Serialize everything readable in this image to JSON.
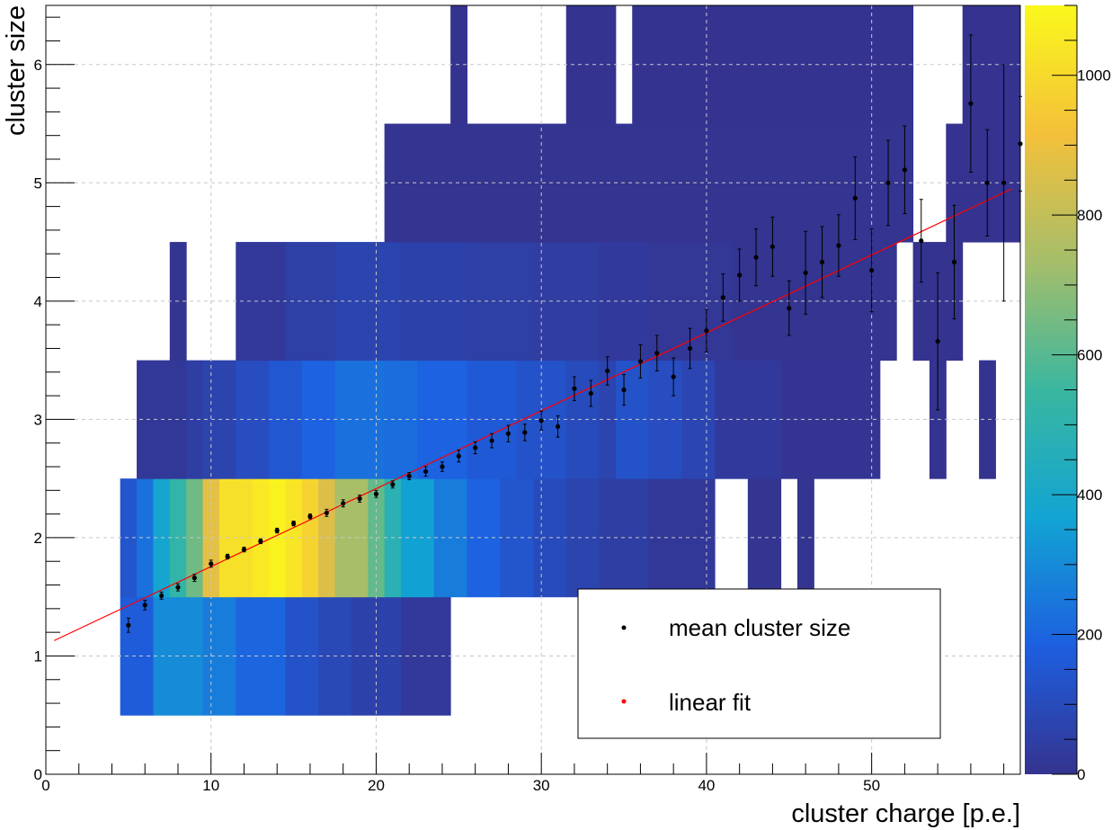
{
  "chart_data": {
    "type": "heatmap",
    "xlabel": "cluster charge [p.e.]",
    "ylabel": "cluster size",
    "xlim": [
      0,
      59
    ],
    "ylim": [
      0,
      6.5
    ],
    "x_ticks": [
      "0",
      "10",
      "20",
      "30",
      "40",
      "50"
    ],
    "y_ticks": [
      "0",
      "1",
      "2",
      "3",
      "4",
      "5",
      "6"
    ],
    "colorbar": {
      "range": [
        0,
        1100
      ],
      "ticks": [
        "0",
        "200",
        "400",
        "600",
        "800",
        "1000"
      ],
      "colors": [
        "#35338f",
        "#1d5fe0",
        "#12a4d3",
        "#3ab7a0",
        "#a6be6a",
        "#f4c03a",
        "#faf81c"
      ]
    },
    "grid": true,
    "legend_position": "bottom-right",
    "heatmap_rows": [
      {
        "y": 1,
        "segments": [
          {
            "x0": 4.5,
            "x1": 6.5,
            "v": 170
          },
          {
            "x0": 6.5,
            "x1": 9.5,
            "v": 300
          },
          {
            "x0": 9.5,
            "x1": 11.5,
            "v": 260
          },
          {
            "x0": 11.5,
            "x1": 14.5,
            "v": 200
          },
          {
            "x0": 14.5,
            "x1": 16.5,
            "v": 130
          },
          {
            "x0": 16.5,
            "x1": 18.5,
            "v": 90
          },
          {
            "x0": 18.5,
            "x1": 21.5,
            "v": 60
          },
          {
            "x0": 21.5,
            "x1": 24.5,
            "v": 25
          }
        ]
      },
      {
        "y": 2,
        "segments": [
          {
            "x0": 4.5,
            "x1": 5.5,
            "v": 140
          },
          {
            "x0": 5.5,
            "x1": 6.5,
            "v": 230
          },
          {
            "x0": 6.5,
            "x1": 7.5,
            "v": 380
          },
          {
            "x0": 7.5,
            "x1": 8.5,
            "v": 520
          },
          {
            "x0": 8.5,
            "x1": 9.5,
            "v": 640
          },
          {
            "x0": 9.5,
            "x1": 10.5,
            "v": 880
          },
          {
            "x0": 10.5,
            "x1": 12.5,
            "v": 1020
          },
          {
            "x0": 12.5,
            "x1": 13.5,
            "v": 1050
          },
          {
            "x0": 13.5,
            "x1": 14.5,
            "v": 1080
          },
          {
            "x0": 14.5,
            "x1": 15.5,
            "v": 1040
          },
          {
            "x0": 15.5,
            "x1": 16.5,
            "v": 980
          },
          {
            "x0": 16.5,
            "x1": 17.5,
            "v": 860
          },
          {
            "x0": 17.5,
            "x1": 19.5,
            "v": 740
          },
          {
            "x0": 19.5,
            "x1": 20.5,
            "v": 620
          },
          {
            "x0": 20.5,
            "x1": 21.5,
            "v": 480
          },
          {
            "x0": 21.5,
            "x1": 23.5,
            "v": 360
          },
          {
            "x0": 23.5,
            "x1": 25.5,
            "v": 260
          },
          {
            "x0": 25.5,
            "x1": 27.5,
            "v": 190
          },
          {
            "x0": 27.5,
            "x1": 29.5,
            "v": 140
          },
          {
            "x0": 29.5,
            "x1": 31.5,
            "v": 100
          },
          {
            "x0": 31.5,
            "x1": 33.5,
            "v": 70
          },
          {
            "x0": 33.5,
            "x1": 36.5,
            "v": 45
          },
          {
            "x0": 36.5,
            "x1": 40.5,
            "v": 20
          },
          {
            "x0": 42.5,
            "x1": 44.5,
            "v": 5
          },
          {
            "x0": 45.5,
            "x1": 46.5,
            "v": 5
          }
        ]
      },
      {
        "y": 3,
        "segments": [
          {
            "x0": 5.5,
            "x1": 8.5,
            "v": 20
          },
          {
            "x0": 8.5,
            "x1": 9.5,
            "v": 45
          },
          {
            "x0": 9.5,
            "x1": 11.5,
            "v": 70
          },
          {
            "x0": 11.5,
            "x1": 13.5,
            "v": 110
          },
          {
            "x0": 13.5,
            "x1": 15.5,
            "v": 150
          },
          {
            "x0": 15.5,
            "x1": 17.5,
            "v": 190
          },
          {
            "x0": 17.5,
            "x1": 20.5,
            "v": 230
          },
          {
            "x0": 20.5,
            "x1": 22.5,
            "v": 220
          },
          {
            "x0": 22.5,
            "x1": 25.5,
            "v": 190
          },
          {
            "x0": 25.5,
            "x1": 28.5,
            "v": 160
          },
          {
            "x0": 28.5,
            "x1": 31.5,
            "v": 130
          },
          {
            "x0": 31.5,
            "x1": 33.5,
            "v": 100
          },
          {
            "x0": 33.5,
            "x1": 34.5,
            "v": 70
          },
          {
            "x0": 34.5,
            "x1": 36.5,
            "v": 130
          },
          {
            "x0": 36.5,
            "x1": 38.5,
            "v": 110
          },
          {
            "x0": 38.5,
            "x1": 40.5,
            "v": 80
          },
          {
            "x0": 40.5,
            "x1": 44.5,
            "v": 30
          },
          {
            "x0": 44.5,
            "x1": 50.5,
            "v": 10
          },
          {
            "x0": 53.5,
            "x1": 54.5,
            "v": 2
          },
          {
            "x0": 56.5,
            "x1": 57.5,
            "v": 2
          }
        ]
      },
      {
        "y": 4,
        "segments": [
          {
            "x0": 7.5,
            "x1": 8.5,
            "v": 5
          },
          {
            "x0": 11.5,
            "x1": 14.5,
            "v": 25
          },
          {
            "x0": 14.5,
            "x1": 17.5,
            "v": 50
          },
          {
            "x0": 17.5,
            "x1": 21.5,
            "v": 70
          },
          {
            "x0": 21.5,
            "x1": 25.5,
            "v": 60
          },
          {
            "x0": 25.5,
            "x1": 29.5,
            "v": 50
          },
          {
            "x0": 29.5,
            "x1": 33.5,
            "v": 40
          },
          {
            "x0": 33.5,
            "x1": 36.5,
            "v": 30
          },
          {
            "x0": 36.5,
            "x1": 41.5,
            "v": 15
          },
          {
            "x0": 41.5,
            "x1": 51.5,
            "v": 5
          },
          {
            "x0": 52.5,
            "x1": 54.5,
            "v": 2
          },
          {
            "x0": 54.5,
            "x1": 55.5,
            "v": 2
          }
        ]
      },
      {
        "y": 5,
        "segments": [
          {
            "x0": 20.5,
            "x1": 52.5,
            "v": 4
          },
          {
            "x0": 54.5,
            "x1": 55.5,
            "v": 1
          },
          {
            "x0": 55.5,
            "x1": 59,
            "v": 1
          }
        ]
      },
      {
        "y": 6,
        "segments": [
          {
            "x0": 24.5,
            "x1": 25.5,
            "v": 2
          },
          {
            "x0": 31.5,
            "x1": 34.5,
            "v": 2
          },
          {
            "x0": 35.5,
            "x1": 52.5,
            "v": 2
          },
          {
            "x0": 55.5,
            "x1": 59,
            "v": 1
          }
        ]
      }
    ],
    "series": [
      {
        "name": "mean cluster size",
        "color": "#000000",
        "x": [
          5,
          6,
          7,
          8,
          9,
          10,
          11,
          12,
          13,
          14,
          15,
          16,
          17,
          18,
          19,
          20,
          21,
          22,
          23,
          24,
          25,
          26,
          27,
          28,
          29,
          30,
          31,
          32,
          33,
          34,
          35,
          36,
          37,
          38,
          39,
          40,
          41,
          42,
          43,
          44,
          45,
          46,
          47,
          48,
          49,
          50,
          51,
          52,
          53,
          54,
          55,
          56,
          57,
          58,
          59
        ],
        "y": [
          1.26,
          1.43,
          1.51,
          1.58,
          1.66,
          1.78,
          1.84,
          1.9,
          1.97,
          2.06,
          2.12,
          2.18,
          2.21,
          2.29,
          2.33,
          2.37,
          2.45,
          2.52,
          2.56,
          2.6,
          2.69,
          2.76,
          2.82,
          2.88,
          2.89,
          2.99,
          2.94,
          3.26,
          3.22,
          3.41,
          3.25,
          3.49,
          3.56,
          3.36,
          3.6,
          3.75,
          4.03,
          4.22,
          4.37,
          4.46,
          3.94,
          4.24,
          4.33,
          4.47,
          4.87,
          4.26,
          5.0,
          5.11,
          4.51,
          3.66,
          4.33,
          5.67,
          5.0,
          5.0,
          5.33
        ],
        "err": [
          0.06,
          0.04,
          0.03,
          0.03,
          0.03,
          0.03,
          0.02,
          0.02,
          0.02,
          0.02,
          0.02,
          0.02,
          0.03,
          0.03,
          0.03,
          0.03,
          0.03,
          0.03,
          0.04,
          0.04,
          0.05,
          0.05,
          0.06,
          0.07,
          0.07,
          0.08,
          0.09,
          0.1,
          0.11,
          0.12,
          0.13,
          0.14,
          0.15,
          0.16,
          0.17,
          0.18,
          0.2,
          0.22,
          0.24,
          0.25,
          0.23,
          0.35,
          0.3,
          0.26,
          0.35,
          0.35,
          0.36,
          0.37,
          0.35,
          0.58,
          0.48,
          0.58,
          0.45,
          1.0,
          0.4
        ]
      },
      {
        "name": "linear fit",
        "color": "#ff0000",
        "x": [
          0.5,
          58.5
        ],
        "y": [
          1.13,
          4.95
        ]
      }
    ]
  }
}
